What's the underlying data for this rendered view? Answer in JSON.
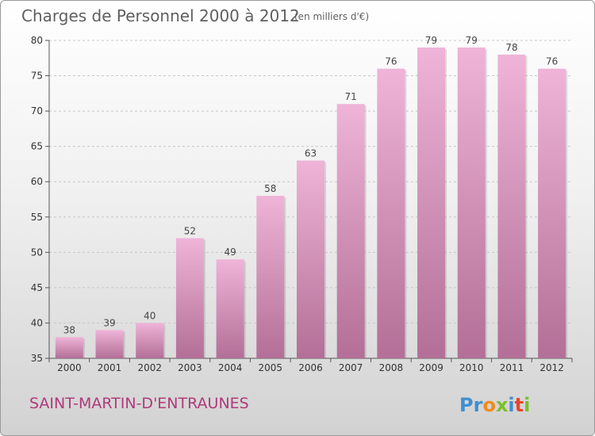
{
  "colors": {
    "bar_light": "#efb4d8",
    "bar_dark": "#b36f97",
    "commune": "#b03a7a",
    "logo_p": "#3f8fd0",
    "logo_r": "#3f8fd0",
    "logo_o": "#f08a1e",
    "logo_x": "#7bbf2a",
    "logo_i": "#3f8fd0",
    "logo_t": "#e8452a",
    "logo_i2": "#7bbf2a"
  },
  "chart_data": {
    "type": "bar",
    "title": "Charges de Personnel 2000 à 2012",
    "unit": "(en milliers d'€)",
    "xlabel": "",
    "ylabel": "",
    "categories": [
      "2000",
      "2001",
      "2002",
      "2003",
      "2004",
      "2005",
      "2006",
      "2007",
      "2008",
      "2009",
      "2010",
      "2011",
      "2012"
    ],
    "values": [
      38,
      39,
      40,
      52,
      49,
      58,
      63,
      71,
      76,
      79,
      79,
      78,
      76
    ],
    "ylim": [
      35,
      80
    ],
    "yticks": [
      35,
      40,
      45,
      50,
      55,
      60,
      65,
      70,
      75,
      80
    ],
    "grid": true
  },
  "footer": {
    "commune": "SAINT-MARTIN-D'ENTRAUNES",
    "logo": {
      "p": "P",
      "r": "r",
      "o": "o",
      "x": "x",
      "i": "i",
      "t": "t",
      "i2": "i"
    }
  }
}
